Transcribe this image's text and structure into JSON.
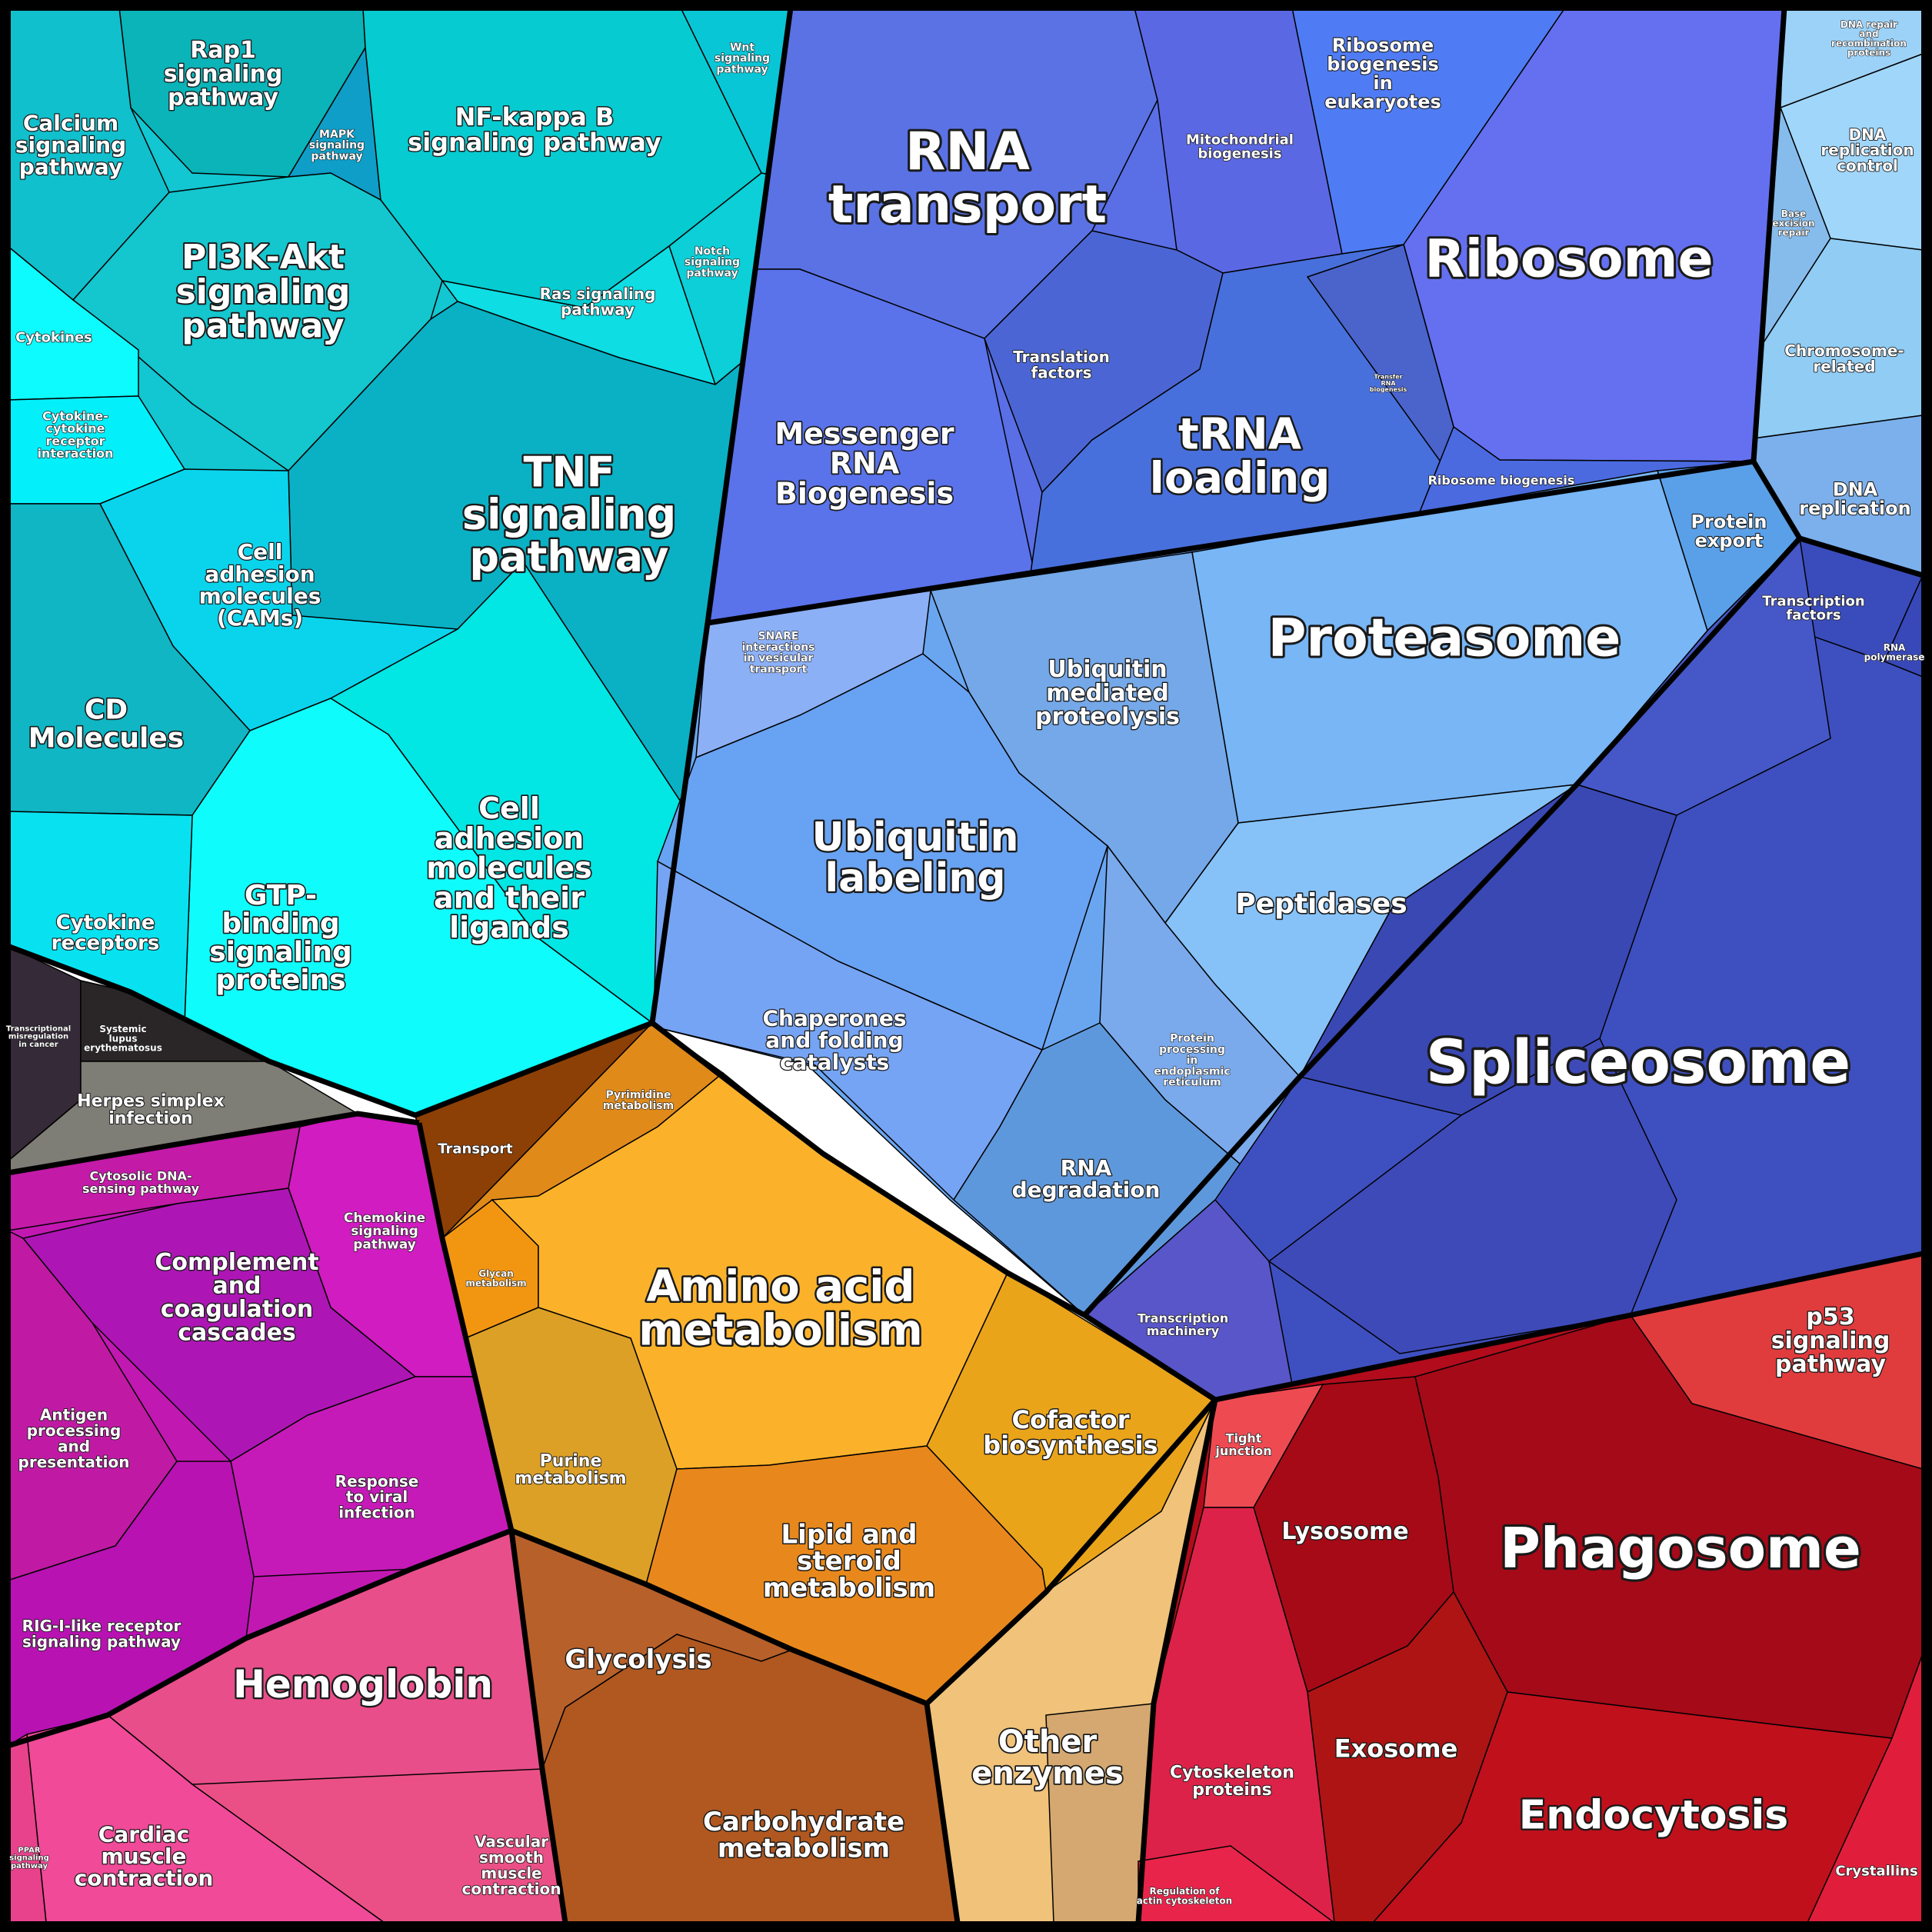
{
  "diagram": {
    "groups": [
      {
        "name": "signaling",
        "color": "#10c8d4"
      },
      {
        "name": "rna",
        "color": "#5a6ee8"
      },
      {
        "name": "protein",
        "color": "#6aa8f0"
      },
      {
        "name": "dna",
        "color": "#8ec8f4"
      },
      {
        "name": "spliceosome",
        "color": "#3f4fc0"
      },
      {
        "name": "immune",
        "color": "#c21cb8"
      },
      {
        "name": "dark",
        "color": "#2a2a30"
      },
      {
        "name": "metabolism",
        "color": "#f2a81c"
      },
      {
        "name": "carbohydrate",
        "color": "#b45c20"
      },
      {
        "name": "other-enzymes",
        "color": "#e8b878"
      },
      {
        "name": "phagosome",
        "color": "#b00c1c"
      },
      {
        "name": "hemoglobin",
        "color": "#e8508c"
      }
    ],
    "labels": [
      {
        "id": "rap1",
        "lines": [
          "Rap1",
          "signaling",
          "pathway"
        ]
      },
      {
        "id": "calcium",
        "lines": [
          "Calcium",
          "signaling",
          "pathway"
        ]
      },
      {
        "id": "mapk",
        "lines": [
          "MAPK",
          "signaling",
          "pathway"
        ]
      },
      {
        "id": "nfkb",
        "lines": [
          "NF-kappa B",
          "signaling pathway"
        ]
      },
      {
        "id": "wnt",
        "lines": [
          "Wnt",
          "signaling",
          "pathway"
        ]
      },
      {
        "id": "pi3k",
        "lines": [
          "PI3K-Akt",
          "signaling",
          "pathway"
        ]
      },
      {
        "id": "notch",
        "lines": [
          "Notch",
          "signaling",
          "pathway"
        ]
      },
      {
        "id": "ras",
        "lines": [
          "Ras signaling",
          "pathway"
        ]
      },
      {
        "id": "cytokines",
        "lines": [
          "Cytokines"
        ]
      },
      {
        "id": "ccri",
        "lines": [
          "Cytokine-",
          "cytokine",
          "receptor",
          "interaction"
        ]
      },
      {
        "id": "tnf",
        "lines": [
          "TNF",
          "signaling",
          "pathway"
        ]
      },
      {
        "id": "cams",
        "lines": [
          "Cell",
          "adhesion",
          "molecules",
          "(CAMs)"
        ]
      },
      {
        "id": "cd",
        "lines": [
          "CD",
          "Molecules"
        ]
      },
      {
        "id": "cellad2",
        "lines": [
          "Cell",
          "adhesion",
          "molecules",
          "and their",
          "ligands"
        ]
      },
      {
        "id": "gtp",
        "lines": [
          "GTP-",
          "binding",
          "signaling",
          "proteins"
        ]
      },
      {
        "id": "cytrec",
        "lines": [
          "Cytokine",
          "receptors"
        ]
      },
      {
        "id": "transmis",
        "lines": [
          "Transcriptional",
          "misregulation",
          "in cancer"
        ]
      },
      {
        "id": "sle",
        "lines": [
          "Systemic",
          "lupus",
          "erythematosus"
        ]
      },
      {
        "id": "herpes",
        "lines": [
          "Herpes simplex",
          "infection"
        ]
      },
      {
        "id": "rnatrans",
        "lines": [
          "RNA",
          "transport"
        ]
      },
      {
        "id": "mito",
        "lines": [
          "Mitochondrial",
          "biogenesis"
        ]
      },
      {
        "id": "ribobio",
        "lines": [
          "Ribosome",
          "biogenesis",
          "in",
          "eukaryotes"
        ]
      },
      {
        "id": "ribosome",
        "lines": [
          "Ribosome"
        ]
      },
      {
        "id": "dnarepair",
        "lines": [
          "DNA repair",
          "and",
          "recombination",
          "proteins"
        ]
      },
      {
        "id": "dnarepctl",
        "lines": [
          "DNA",
          "replication",
          "control"
        ]
      },
      {
        "id": "ber",
        "lines": [
          "Base",
          "excision",
          "repair"
        ]
      },
      {
        "id": "chromo",
        "lines": [
          "Chromosome-",
          "related"
        ]
      },
      {
        "id": "dnarep",
        "lines": [
          "DNA",
          "replication"
        ]
      },
      {
        "id": "mrna",
        "lines": [
          "Messenger",
          "RNA",
          "Biogenesis"
        ]
      },
      {
        "id": "transl",
        "lines": [
          "Translation",
          "factors"
        ]
      },
      {
        "id": "trna",
        "lines": [
          "tRNA",
          "loading"
        ]
      },
      {
        "id": "transfer",
        "lines": [
          "Transfer",
          "RNA",
          "biogenesis"
        ]
      },
      {
        "id": "ribobio2",
        "lines": [
          "Ribosome biogenesis"
        ]
      },
      {
        "id": "protexp",
        "lines": [
          "Protein",
          "export"
        ]
      },
      {
        "id": "snare",
        "lines": [
          "SNARE",
          "interactions",
          "in vesicular",
          "transport"
        ]
      },
      {
        "id": "ubmed",
        "lines": [
          "Ubiquitin",
          "mediated",
          "proteolysis"
        ]
      },
      {
        "id": "proteasome",
        "lines": [
          "Proteasome"
        ]
      },
      {
        "id": "tf",
        "lines": [
          "Transcription",
          "factors"
        ]
      },
      {
        "id": "rnapol",
        "lines": [
          "RNA",
          "polymerase"
        ]
      },
      {
        "id": "ublab",
        "lines": [
          "Ubiquitin",
          "labeling"
        ]
      },
      {
        "id": "peptidases",
        "lines": [
          "Peptidases"
        ]
      },
      {
        "id": "chaperones",
        "lines": [
          "Chaperones",
          "and folding",
          "catalysts"
        ]
      },
      {
        "id": "ppin",
        "lines": [
          "Protein",
          "processing",
          "in",
          "endoplasmic",
          "reticulum"
        ]
      },
      {
        "id": "spliceosome",
        "lines": [
          "Spliceosome"
        ]
      },
      {
        "id": "rnadeg",
        "lines": [
          "RNA",
          "degradation"
        ]
      },
      {
        "id": "transmach",
        "lines": [
          "Transcription",
          "machinery"
        ]
      },
      {
        "id": "transport",
        "lines": [
          "Transport"
        ]
      },
      {
        "id": "pyrimidine",
        "lines": [
          "Pyrimidine",
          "metabolism"
        ]
      },
      {
        "id": "cytdna",
        "lines": [
          "Cytosolic DNA-",
          "sensing pathway"
        ]
      },
      {
        "id": "chemokine",
        "lines": [
          "Chemokine",
          "signaling",
          "pathway"
        ]
      },
      {
        "id": "complement",
        "lines": [
          "Complement",
          "and",
          "coagulation",
          "cascades"
        ]
      },
      {
        "id": "glycan",
        "lines": [
          "Glycan",
          "metabolism"
        ]
      },
      {
        "id": "aminoacid",
        "lines": [
          "Amino acid",
          "metabolism"
        ]
      },
      {
        "id": "p53",
        "lines": [
          "p53",
          "signaling",
          "pathway"
        ]
      },
      {
        "id": "antigen",
        "lines": [
          "Antigen",
          "processing",
          "and",
          "presentation"
        ]
      },
      {
        "id": "cofactor",
        "lines": [
          "Cofactor",
          "biosynthesis"
        ]
      },
      {
        "id": "tight",
        "lines": [
          "Tight",
          "junction"
        ]
      },
      {
        "id": "purine",
        "lines": [
          "Purine",
          "metabolism"
        ]
      },
      {
        "id": "viral",
        "lines": [
          "Response",
          "to viral",
          "infection"
        ]
      },
      {
        "id": "lysosome",
        "lines": [
          "Lysosome"
        ]
      },
      {
        "id": "phagosome",
        "lines": [
          "Phagosome"
        ]
      },
      {
        "id": "lipid",
        "lines": [
          "Lipid and",
          "steroid",
          "metabolism"
        ]
      },
      {
        "id": "rigi",
        "lines": [
          "RIG-I-like receptor",
          "signaling pathway"
        ]
      },
      {
        "id": "glycolysis",
        "lines": [
          "Glycolysis"
        ]
      },
      {
        "id": "hemoglobin",
        "lines": [
          "Hemoglobin"
        ]
      },
      {
        "id": "other",
        "lines": [
          "Other",
          "enzymes"
        ]
      },
      {
        "id": "exosome",
        "lines": [
          "Exosome"
        ]
      },
      {
        "id": "cytoskel",
        "lines": [
          "Cytoskeleton",
          "proteins"
        ]
      },
      {
        "id": "endocytosis",
        "lines": [
          "Endocytosis"
        ]
      },
      {
        "id": "carbo",
        "lines": [
          "Carbohydrate",
          "metabolism"
        ]
      },
      {
        "id": "cardiac",
        "lines": [
          "Cardiac",
          "muscle",
          "contraction"
        ]
      },
      {
        "id": "vascular",
        "lines": [
          "Vascular",
          "smooth",
          "muscle",
          "contraction"
        ]
      },
      {
        "id": "ppar",
        "lines": [
          "PPAR",
          "signaling",
          "pathway"
        ]
      },
      {
        "id": "regactin",
        "lines": [
          "Regulation of",
          "actin cytoskeleton"
        ]
      },
      {
        "id": "crystallins",
        "lines": [
          "Crystallins"
        ]
      }
    ]
  }
}
